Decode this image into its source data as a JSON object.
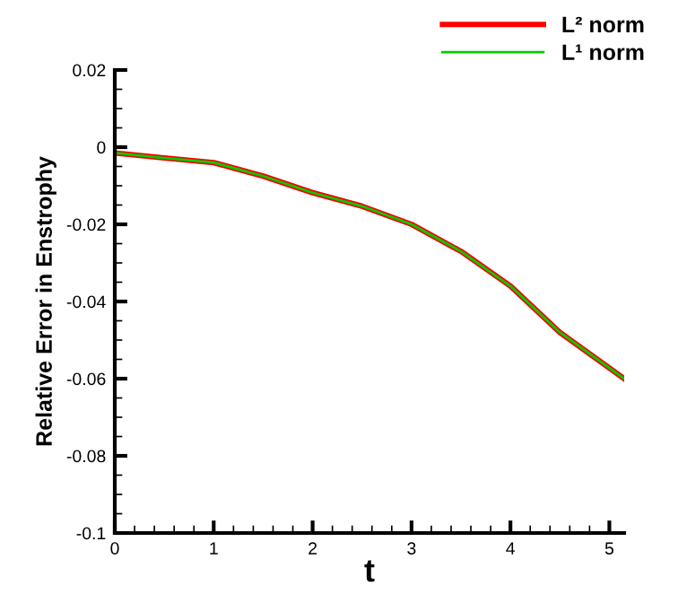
{
  "chart_data": {
    "type": "line",
    "xlabel": "t",
    "ylabel": "Relative Error in Enstrophy",
    "x": [
      0,
      0.5,
      1,
      1.5,
      2,
      2.5,
      3,
      3.5,
      4,
      4.5,
      5.15
    ],
    "series": [
      {
        "name": "L² norm",
        "color": "#ff0000",
        "values": [
          -0.0015,
          -0.0028,
          -0.004,
          -0.0075,
          -0.0118,
          -0.0153,
          -0.02,
          -0.027,
          -0.036,
          -0.048,
          -0.06
        ]
      },
      {
        "name": "L¹ norm",
        "color": "#00cc00",
        "values": [
          -0.0015,
          -0.0028,
          -0.004,
          -0.0075,
          -0.0118,
          -0.0153,
          -0.02,
          -0.027,
          -0.036,
          -0.048,
          -0.06
        ]
      }
    ],
    "xlim": [
      0,
      5.15
    ],
    "ylim": [
      -0.1,
      0.02
    ],
    "xticks": [
      0,
      1,
      2,
      3,
      4,
      5
    ],
    "yticks": [
      -0.1,
      -0.08,
      -0.06,
      -0.04,
      -0.02,
      0,
      0.02
    ],
    "legend": "top right",
    "grid": false,
    "marker": "none",
    "line_style": "solid"
  }
}
